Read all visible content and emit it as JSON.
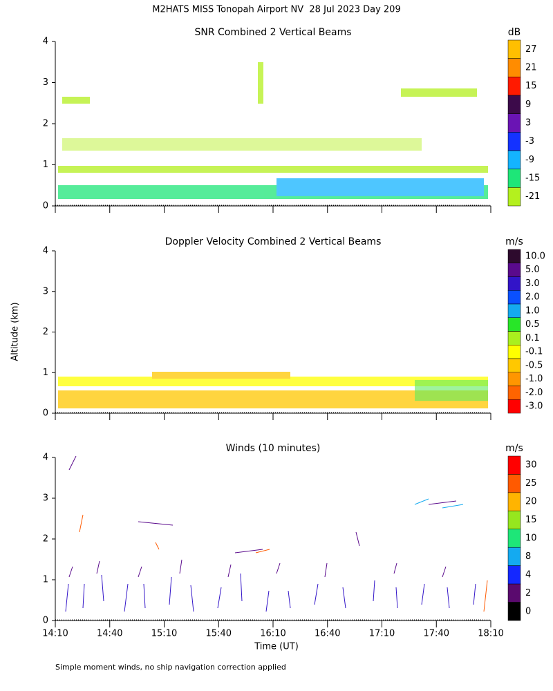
{
  "title": "M2HATS MISS Tonopah Airport NV  28 Jul 2023 Day 209",
  "y_label": "Altitude (km)",
  "x_label": "Time (UT)",
  "footnote": "Simple moment winds, no ship navigation correction applied",
  "chart_data": [
    {
      "type": "heatmap",
      "title": "SNR Combined 2 Vertical Beams",
      "ylim": [
        0,
        4
      ],
      "yticks": [
        0,
        1,
        2,
        3,
        4
      ],
      "colorbar": {
        "unit": "dB",
        "ticks": [
          27,
          21,
          15,
          9,
          3,
          -3,
          -9,
          -15,
          -21
        ],
        "colors": [
          "#ffbf00",
          "#ff8c00",
          "#ff1a00",
          "#3c0a4a",
          "#6a14b4",
          "#1432ff",
          "#14b4ff",
          "#1ee678",
          "#b4f01e"
        ]
      }
    },
    {
      "type": "heatmap",
      "title": "Doppler Velocity Combined 2 Vertical Beams",
      "ylim": [
        0,
        4
      ],
      "yticks": [
        0,
        1,
        2,
        3,
        4
      ],
      "colorbar": {
        "unit": "m/s",
        "ticks": [
          {
            "value": 10,
            "label": "10.0"
          },
          {
            "value": 5,
            "label": "5.0"
          },
          {
            "value": 3,
            "label": "3.0"
          },
          {
            "value": 2,
            "label": "2.0"
          },
          {
            "value": 1,
            "label": "1.0"
          },
          0.5,
          0.1,
          -0.1,
          -0.5,
          {
            "value": -1,
            "label": "-1.0"
          },
          {
            "value": -2,
            "label": "-2.0"
          },
          {
            "value": -3,
            "label": "-3.0"
          }
        ],
        "colors": [
          "#2d0a2d",
          "#5a0a8c",
          "#3214c8",
          "#0a50ff",
          "#14aaf0",
          "#28e628",
          "#aaf01e",
          "#ffff00",
          "#ffc800",
          "#ff9600",
          "#ff6400",
          "#ff0000"
        ]
      }
    },
    {
      "type": "barbs",
      "title": "Winds (10 minutes)",
      "ylim": [
        0,
        4
      ],
      "yticks": [
        0,
        1,
        2,
        3,
        4
      ],
      "categories": [
        "14:10",
        "14:40",
        "15:10",
        "15:40",
        "16:10",
        "16:40",
        "17:10",
        "17:40",
        "18:10"
      ],
      "colorbar": {
        "unit": "m/s",
        "ticks": [
          30,
          25,
          20,
          15,
          10,
          8,
          4,
          2,
          0
        ],
        "colors": [
          "#ff0000",
          "#ff5a00",
          "#ffb400",
          "#96e61e",
          "#1ee678",
          "#14aaf0",
          "#1428ff",
          "#5a0a6e",
          "#000000"
        ]
      }
    }
  ]
}
